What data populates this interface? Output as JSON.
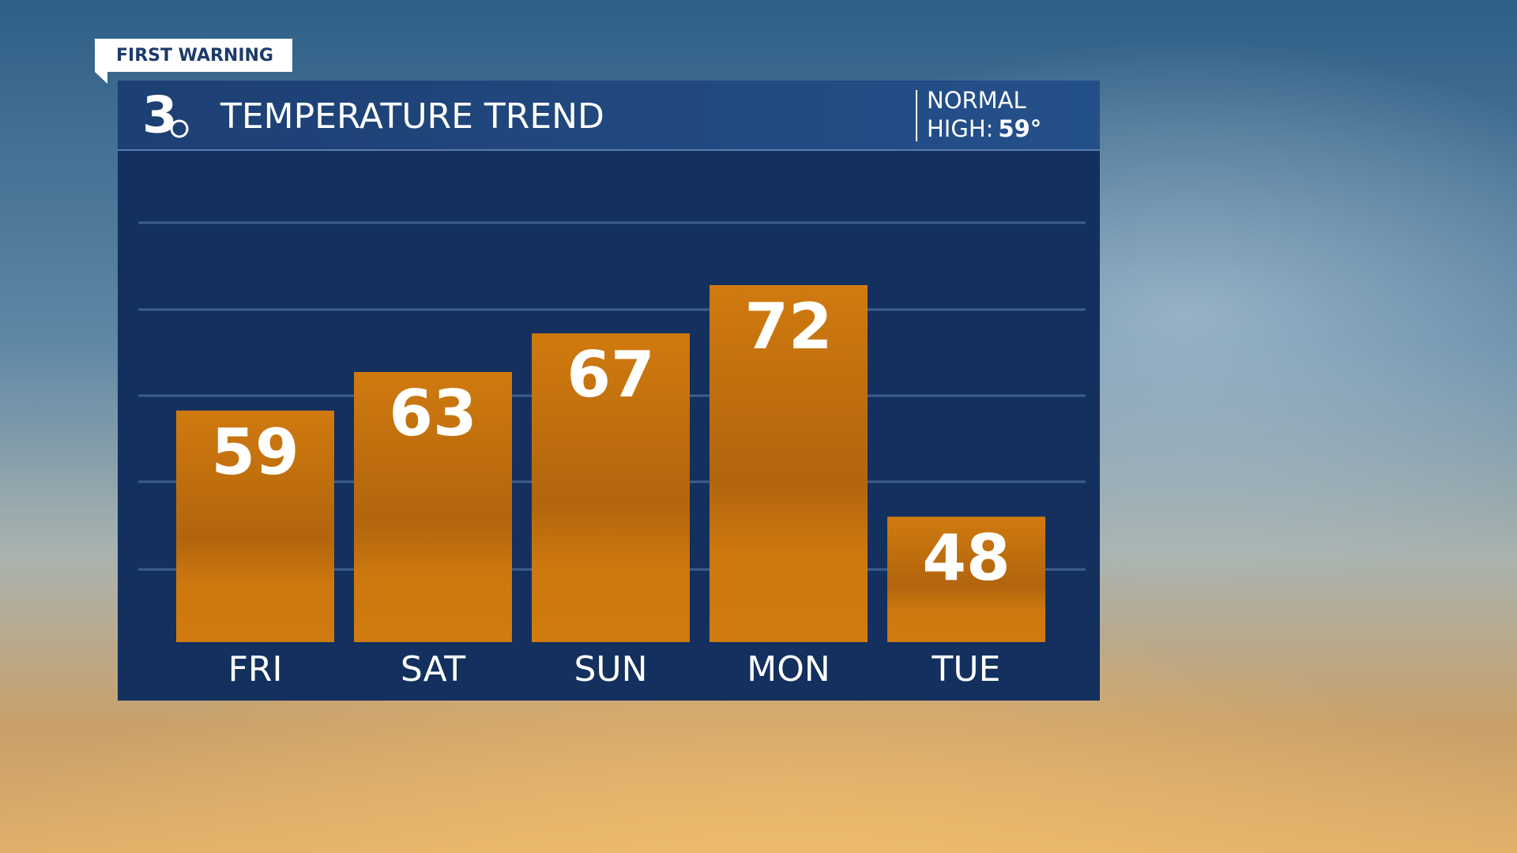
{
  "tag": "FIRST WARNING",
  "logo": "3",
  "normal_label": "NORMAL",
  "high_label": "HIGH:",
  "normal_high": "59°",
  "chart_data": {
    "type": "bar",
    "title": "TEMPERATURE TREND",
    "categories": [
      "FRI",
      "SAT",
      "SUN",
      "MON",
      "TUE"
    ],
    "values": [
      59,
      63,
      67,
      72,
      48
    ],
    "color": "#d07a0f",
    "ylim": [
      35,
      86
    ]
  }
}
